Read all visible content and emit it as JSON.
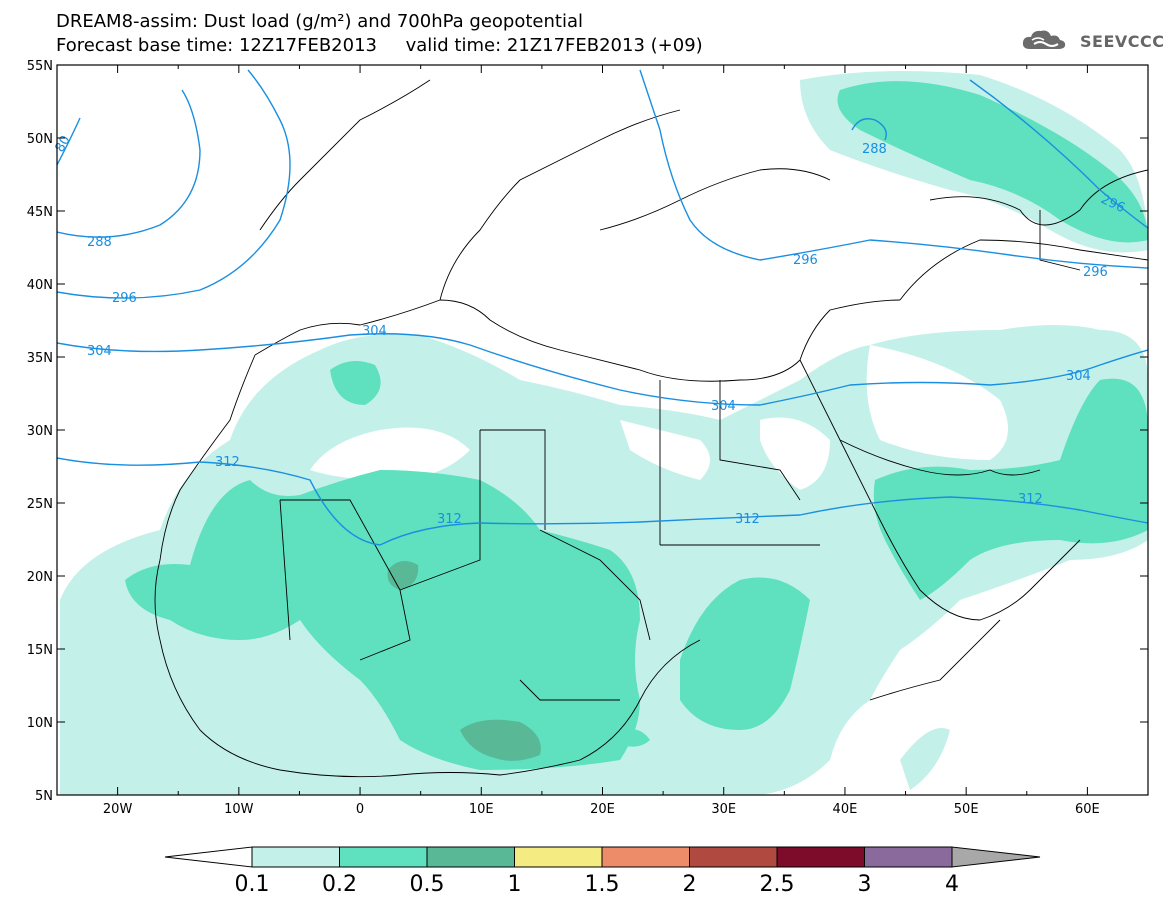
{
  "title": {
    "line1": "DREAM8-assim: Dust load (g/m²) and 700hPa geopotential",
    "line2": "Forecast base time: 12Z17FEB2013     valid time: 21Z17FEB2013 (+09)"
  },
  "logo": {
    "icon": "cloud-logo-icon",
    "text": "SEEVCCC"
  },
  "map": {
    "lat_ticks": [
      "55N",
      "50N",
      "45N",
      "40N",
      "35N",
      "30N",
      "25N",
      "20N",
      "15N",
      "10N",
      "5N"
    ],
    "lon_ticks": [
      "20W",
      "10W",
      "0",
      "10E",
      "20E",
      "30E",
      "40E",
      "50E",
      "60E"
    ],
    "lat_range": [
      5,
      55
    ],
    "lon_range": [
      -25,
      65
    ],
    "contour_color": "#1a8fe0",
    "contour_labels": [
      "80",
      "288",
      "288",
      "296",
      "296",
      "296",
      "296",
      "304",
      "304",
      "304",
      "304",
      "312",
      "312",
      "312",
      "312"
    ]
  },
  "colorbar": {
    "labels": [
      "0.1",
      "0.2",
      "0.5",
      "1",
      "1.5",
      "2",
      "2.5",
      "3",
      "4"
    ],
    "colors": [
      "#c4f0ea",
      "#5fe0be",
      "#59b896",
      "#f4ec82",
      "#ec8c68",
      "#b04a40",
      "#7c0c2a",
      "#8a6a9c",
      "#a8a8a8"
    ],
    "low_end_color": "#ffffff"
  },
  "dust_colors": {
    "light": "#c4f0ea",
    "medium": "#5fe0be",
    "dark": "#59b896",
    "darkest": "#6e9a86"
  }
}
